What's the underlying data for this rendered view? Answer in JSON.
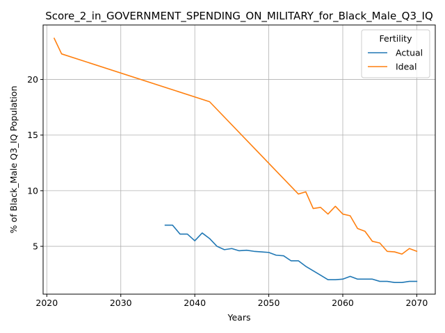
{
  "chart_data": {
    "type": "line",
    "title": "Score_2_in_GOVERNMENT_SPENDING_ON_MILITARY_for_Black_Male_Q3_IQ",
    "xlabel": "Years",
    "ylabel": "% of Black_Male Q3_IQ Population",
    "xlim": [
      2019.5,
      2072.5
    ],
    "ylim": [
      0.7,
      24.9
    ],
    "xticks": [
      2020,
      2030,
      2040,
      2050,
      2060,
      2070
    ],
    "yticks": [
      5,
      10,
      15,
      20
    ],
    "grid": true,
    "legend": {
      "title": "Fertility",
      "placement": "top-right"
    },
    "series": [
      {
        "name": "Actual",
        "color": "#1f77b4",
        "x": [
          2036,
          2037,
          2038,
          2039,
          2040,
          2041,
          2042,
          2043,
          2044,
          2045,
          2046,
          2047,
          2048,
          2049,
          2050,
          2051,
          2052,
          2053,
          2054,
          2055,
          2056,
          2057,
          2058,
          2059,
          2060,
          2061,
          2062,
          2063,
          2064,
          2065,
          2066,
          2067,
          2068,
          2069,
          2070
        ],
        "values": [
          6.9,
          6.9,
          6.1,
          6.1,
          5.5,
          6.2,
          5.7,
          5.0,
          4.7,
          4.8,
          4.6,
          4.65,
          4.55,
          4.5,
          4.45,
          4.2,
          4.15,
          3.7,
          3.7,
          3.2,
          2.8,
          2.4,
          2.0,
          2.0,
          2.05,
          2.3,
          2.05,
          2.05,
          2.05,
          1.85,
          1.85,
          1.75,
          1.75,
          1.85,
          1.85
        ]
      },
      {
        "name": "Ideal",
        "color": "#ff7f0e",
        "x": [
          2021,
          2022,
          2042,
          2054,
          2055,
          2056,
          2057,
          2058,
          2059,
          2060,
          2061,
          2062,
          2063,
          2064,
          2065,
          2066,
          2067,
          2068,
          2069,
          2070
        ],
        "values": [
          23.7,
          22.3,
          18.0,
          9.7,
          9.9,
          8.4,
          8.5,
          7.9,
          8.6,
          7.9,
          7.75,
          6.6,
          6.35,
          5.45,
          5.3,
          4.55,
          4.5,
          4.3,
          4.8,
          4.55
        ]
      }
    ]
  },
  "colors": {
    "axis": "#000000",
    "grid": "#b0b0b0",
    "background": "#ffffff"
  }
}
